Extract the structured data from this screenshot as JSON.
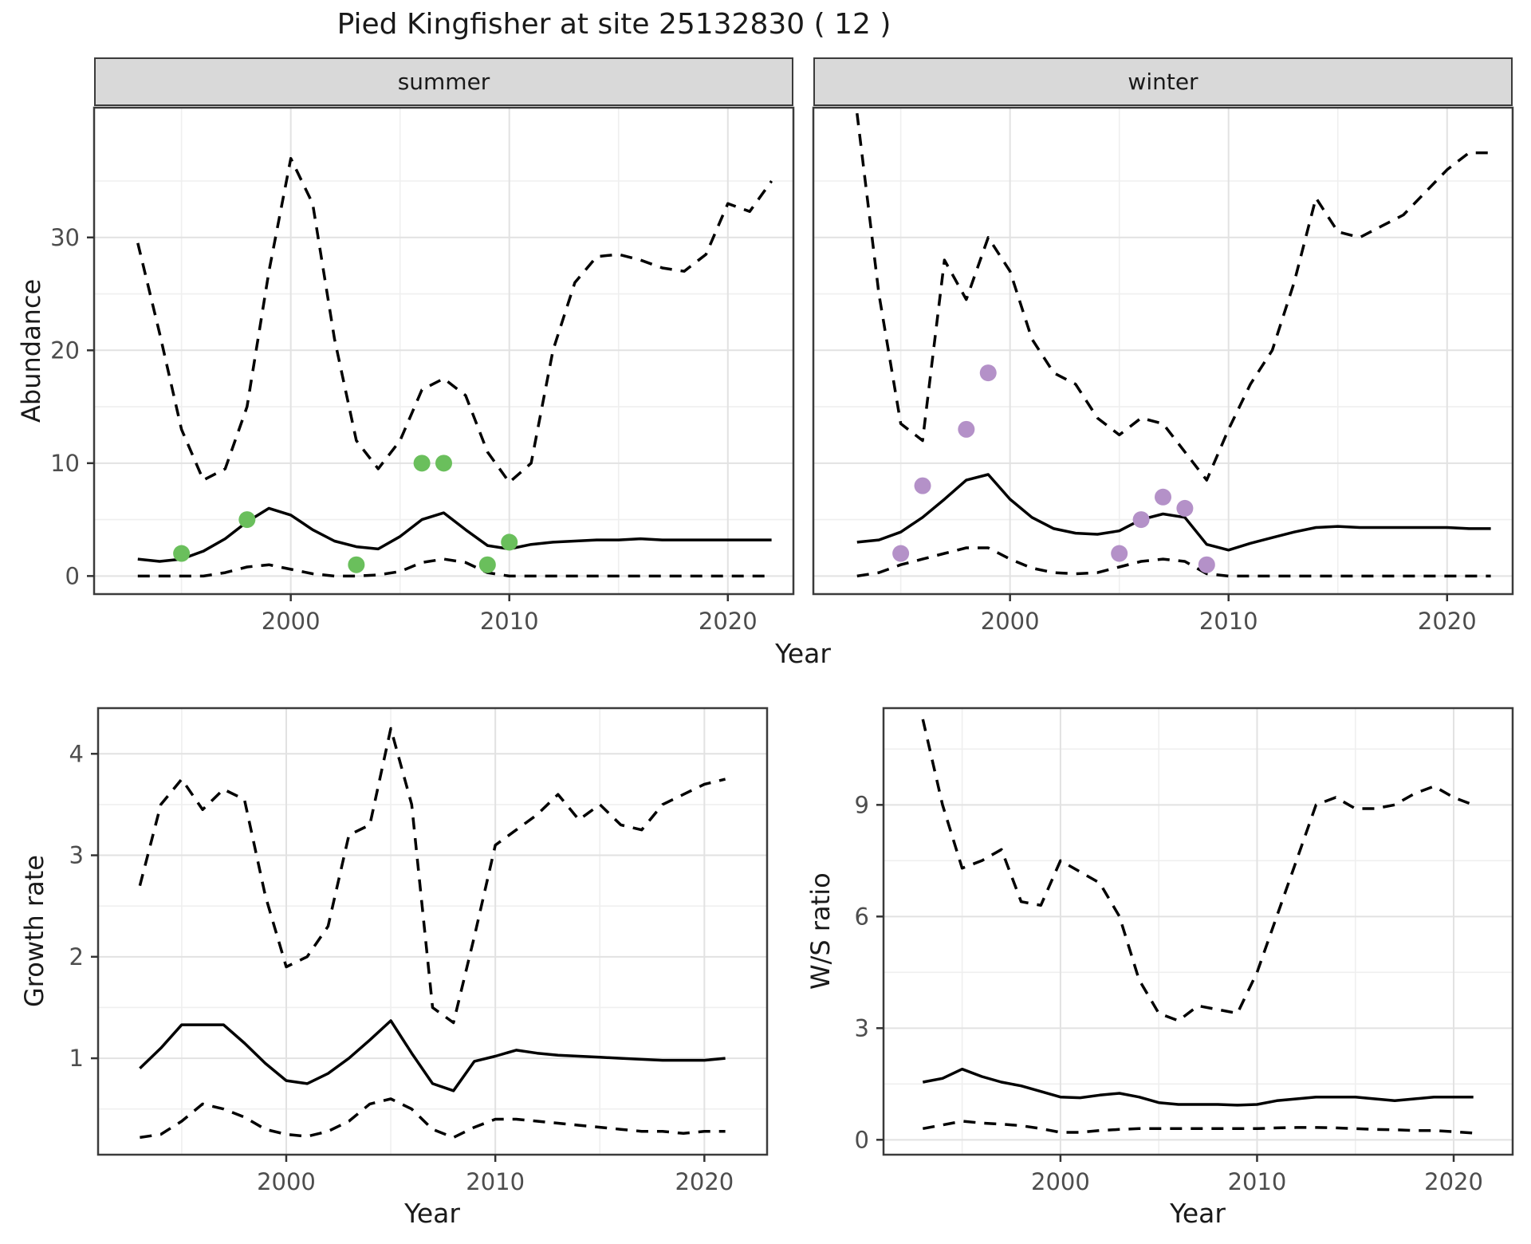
{
  "title": "Pied Kingfisher at site 25132830 ( 12 )",
  "colors": {
    "background": "#ffffff",
    "strip_fill": "#d9d9d9",
    "panel_border": "#3b3b3b",
    "grid_major": "#e2e2e2",
    "grid_minor": "#efefef",
    "line": "#000000",
    "tick_label": "#4d4d4d",
    "summer_points": "#6abf5c",
    "winter_points": "#b491c8"
  },
  "chart_data": [
    {
      "id": "abundance_summer",
      "type": "line",
      "facet": "summer",
      "ylabel": "Abundance",
      "xlabel": "Year",
      "xlim": [
        1991,
        2023
      ],
      "ylim": [
        -1.6,
        41.5
      ],
      "x_ticks": [
        2000,
        2010,
        2020
      ],
      "x_minor": [
        1995,
        2005,
        2015
      ],
      "y_ticks": [
        0,
        10,
        20,
        30
      ],
      "y_minor": [
        5,
        15,
        25,
        35
      ],
      "grid": true,
      "legend": "none",
      "years": [
        1993,
        1994,
        1995,
        1996,
        1997,
        1998,
        1999,
        2000,
        2001,
        2002,
        2003,
        2004,
        2005,
        2006,
        2007,
        2008,
        2009,
        2010,
        2011,
        2012,
        2013,
        2014,
        2015,
        2016,
        2017,
        2018,
        2019,
        2020,
        2021,
        2022
      ],
      "series": [
        {
          "name": "upper_95ci",
          "style": "dashed",
          "values": [
            29.5,
            21.5,
            13,
            8.5,
            9.5,
            15,
            27,
            37,
            33,
            21,
            12,
            9.5,
            12,
            16.5,
            17.5,
            16,
            11,
            8.3,
            10,
            20,
            26,
            28.3,
            28.5,
            28,
            27.3,
            27,
            28.5,
            33,
            32.3,
            35
          ]
        },
        {
          "name": "median_fit",
          "style": "solid",
          "values": [
            1.5,
            1.3,
            1.5,
            2.2,
            3.3,
            4.8,
            6.0,
            5.4,
            4.1,
            3.1,
            2.6,
            2.4,
            3.5,
            5.0,
            5.6,
            4.1,
            2.7,
            2.4,
            2.8,
            3.0,
            3.1,
            3.2,
            3.2,
            3.3,
            3.2,
            3.2,
            3.2,
            3.2,
            3.2,
            3.2
          ]
        },
        {
          "name": "lower_95ci",
          "style": "dashed",
          "values": [
            0,
            0,
            0,
            0,
            0.3,
            0.8,
            1.0,
            0.6,
            0.2,
            0,
            0,
            0.1,
            0.4,
            1.2,
            1.5,
            1.2,
            0.3,
            0,
            0,
            0,
            0,
            0,
            0,
            0,
            0,
            0,
            0,
            0,
            0,
            0
          ]
        }
      ],
      "points": {
        "name": "observed_counts",
        "color_key": "summer_points",
        "data": [
          [
            1995,
            2
          ],
          [
            1998,
            5
          ],
          [
            2003,
            1
          ],
          [
            2006,
            10
          ],
          [
            2007,
            10
          ],
          [
            2009,
            1
          ],
          [
            2010,
            3
          ]
        ]
      }
    },
    {
      "id": "abundance_winter",
      "type": "line",
      "facet": "winter",
      "ylabel": "Abundance",
      "xlabel": "Year",
      "xlim": [
        1991,
        2023
      ],
      "ylim": [
        -1.6,
        41.5
      ],
      "x_ticks": [
        2000,
        2010,
        2020
      ],
      "x_minor": [
        1995,
        2005,
        2015
      ],
      "y_ticks": [
        0,
        10,
        20,
        30
      ],
      "y_minor": [
        5,
        15,
        25,
        35
      ],
      "grid": true,
      "legend": "none",
      "years": [
        1993,
        1994,
        1995,
        1996,
        1997,
        1998,
        1999,
        2000,
        2001,
        2002,
        2003,
        2004,
        2005,
        2006,
        2007,
        2008,
        2009,
        2010,
        2011,
        2012,
        2013,
        2014,
        2015,
        2016,
        2017,
        2018,
        2019,
        2020,
        2021,
        2022
      ],
      "series": [
        {
          "name": "upper_95ci",
          "style": "dashed",
          "values": [
            41,
            25,
            13.5,
            12,
            28,
            24.5,
            30,
            27,
            21,
            18,
            17,
            14,
            12.5,
            14,
            13.5,
            11,
            8.5,
            13,
            17,
            20,
            26,
            33.5,
            30.5,
            30,
            31,
            32,
            34,
            36,
            37.5,
            37.5
          ]
        },
        {
          "name": "median_fit",
          "style": "solid",
          "values": [
            3.0,
            3.2,
            3.9,
            5.2,
            6.8,
            8.5,
            9.0,
            6.8,
            5.2,
            4.2,
            3.8,
            3.7,
            4.0,
            5.0,
            5.5,
            5.2,
            2.8,
            2.3,
            2.9,
            3.4,
            3.9,
            4.3,
            4.4,
            4.3,
            4.3,
            4.3,
            4.3,
            4.3,
            4.2,
            4.2
          ]
        },
        {
          "name": "lower_95ci",
          "style": "dashed",
          "values": [
            0,
            0.3,
            1.0,
            1.5,
            2.0,
            2.5,
            2.5,
            1.5,
            0.7,
            0.3,
            0.2,
            0.3,
            0.8,
            1.3,
            1.5,
            1.3,
            0.2,
            0,
            0,
            0,
            0,
            0,
            0,
            0,
            0,
            0,
            0,
            0,
            0,
            0
          ]
        }
      ],
      "points": {
        "name": "observed_counts",
        "color_key": "winter_points",
        "data": [
          [
            1995,
            2
          ],
          [
            1996,
            8
          ],
          [
            1998,
            13
          ],
          [
            1999,
            18
          ],
          [
            2005,
            2
          ],
          [
            2006,
            5
          ],
          [
            2007,
            7
          ],
          [
            2008,
            6
          ],
          [
            2009,
            1
          ]
        ]
      }
    },
    {
      "id": "growth_rate",
      "type": "line",
      "facet": null,
      "ylabel": "Growth rate",
      "xlabel": "Year",
      "xlim": [
        1991,
        2023
      ],
      "ylim": [
        0.05,
        4.45
      ],
      "x_ticks": [
        2000,
        2010,
        2020
      ],
      "x_minor": [
        1995,
        2005,
        2015
      ],
      "y_ticks": [
        1,
        2,
        3,
        4
      ],
      "y_minor": [
        0.5,
        1.5,
        2.5,
        3.5
      ],
      "grid": true,
      "legend": "none",
      "years": [
        1993,
        1994,
        1995,
        1996,
        1997,
        1998,
        1999,
        2000,
        2001,
        2002,
        2003,
        2004,
        2005,
        2006,
        2007,
        2008,
        2009,
        2010,
        2011,
        2012,
        2013,
        2014,
        2015,
        2016,
        2017,
        2018,
        2019,
        2020,
        2021
      ],
      "series": [
        {
          "name": "upper_95ci",
          "style": "dashed",
          "values": [
            2.7,
            3.5,
            3.75,
            3.45,
            3.65,
            3.55,
            2.6,
            1.9,
            2.0,
            2.3,
            3.2,
            3.3,
            4.25,
            3.5,
            1.5,
            1.35,
            2.2,
            3.1,
            3.25,
            3.4,
            3.6,
            3.35,
            3.5,
            3.3,
            3.25,
            3.5,
            3.6,
            3.7,
            3.75
          ]
        },
        {
          "name": "median_fit",
          "style": "solid",
          "values": [
            0.9,
            1.1,
            1.33,
            1.33,
            1.33,
            1.15,
            0.95,
            0.78,
            0.75,
            0.85,
            1.0,
            1.18,
            1.37,
            1.05,
            0.75,
            0.68,
            0.97,
            1.02,
            1.08,
            1.05,
            1.03,
            1.02,
            1.01,
            1.0,
            0.99,
            0.98,
            0.98,
            0.98,
            1.0
          ]
        },
        {
          "name": "lower_95ci",
          "style": "dashed",
          "values": [
            0.22,
            0.25,
            0.38,
            0.55,
            0.5,
            0.42,
            0.3,
            0.25,
            0.23,
            0.28,
            0.38,
            0.55,
            0.6,
            0.5,
            0.3,
            0.22,
            0.32,
            0.4,
            0.4,
            0.38,
            0.36,
            0.34,
            0.32,
            0.3,
            0.28,
            0.28,
            0.26,
            0.28,
            0.28
          ]
        }
      ],
      "points": null
    },
    {
      "id": "ws_ratio",
      "type": "line",
      "facet": null,
      "ylabel": "W/S ratio",
      "xlabel": "Year",
      "xlim": [
        1991,
        2023
      ],
      "ylim": [
        -0.4,
        11.6
      ],
      "x_ticks": [
        2000,
        2010,
        2020
      ],
      "x_minor": [
        1995,
        2005,
        2015
      ],
      "y_ticks": [
        0,
        3,
        6,
        9
      ],
      "y_minor": [
        1.5,
        4.5,
        7.5,
        10.5
      ],
      "grid": true,
      "legend": "none",
      "years": [
        1993,
        1994,
        1995,
        1996,
        1997,
        1998,
        1999,
        2000,
        2001,
        2002,
        2003,
        2004,
        2005,
        2006,
        2007,
        2008,
        2009,
        2010,
        2011,
        2012,
        2013,
        2014,
        2015,
        2016,
        2017,
        2018,
        2019,
        2020,
        2021
      ],
      "series": [
        {
          "name": "upper_95ci",
          "style": "dashed",
          "values": [
            11.3,
            9.0,
            7.3,
            7.5,
            7.8,
            6.4,
            6.3,
            7.5,
            7.2,
            6.9,
            6.0,
            4.3,
            3.4,
            3.2,
            3.6,
            3.5,
            3.4,
            4.5,
            6.0,
            7.5,
            9.0,
            9.2,
            8.9,
            8.9,
            9.0,
            9.3,
            9.5,
            9.2,
            9.0
          ]
        },
        {
          "name": "median_fit",
          "style": "solid",
          "values": [
            1.55,
            1.65,
            1.9,
            1.7,
            1.55,
            1.45,
            1.3,
            1.15,
            1.13,
            1.2,
            1.25,
            1.15,
            1.0,
            0.95,
            0.95,
            0.95,
            0.93,
            0.95,
            1.05,
            1.1,
            1.15,
            1.15,
            1.15,
            1.1,
            1.05,
            1.1,
            1.15,
            1.15,
            1.15
          ]
        },
        {
          "name": "lower_95ci",
          "style": "dashed",
          "values": [
            0.3,
            0.4,
            0.5,
            0.45,
            0.42,
            0.38,
            0.3,
            0.2,
            0.2,
            0.25,
            0.28,
            0.3,
            0.3,
            0.3,
            0.3,
            0.3,
            0.3,
            0.3,
            0.32,
            0.33,
            0.33,
            0.32,
            0.3,
            0.28,
            0.27,
            0.25,
            0.25,
            0.22,
            0.18
          ]
        }
      ],
      "points": null
    }
  ]
}
